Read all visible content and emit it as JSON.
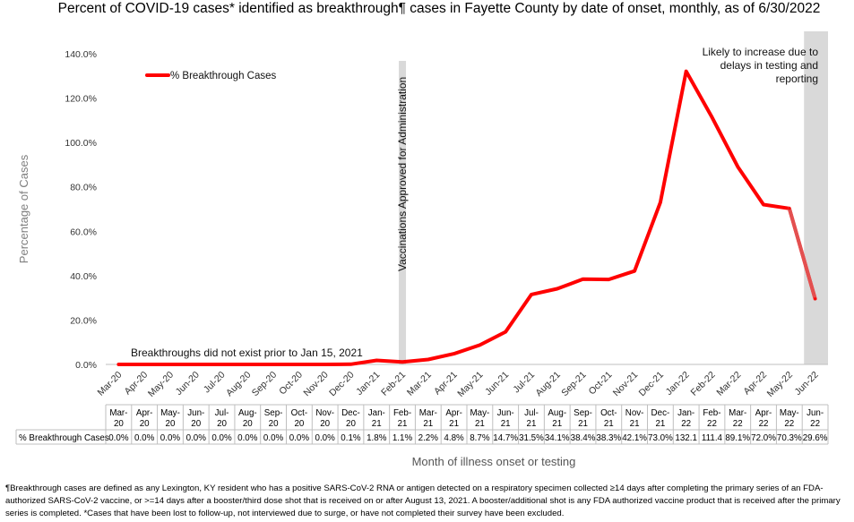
{
  "chart_data": {
    "type": "line",
    "title": "Percent of COVID-19 cases* identified as breakthrough¶ cases in Fayette County by date of onset, monthly, as of 6/30/2022",
    "xlabel": "Month of illness onset or testing",
    "ylabel": "Percentage of Cases",
    "ylim": [
      0,
      140
    ],
    "yticks": [
      "0.0%",
      "20.0%",
      "40.0%",
      "60.0%",
      "80.0%",
      "100.0%",
      "120.0%",
      "140.0%"
    ],
    "grid": false,
    "legend_position": "top-left",
    "categories": [
      "Mar-20",
      "Apr-20",
      "May-20",
      "Jun-20",
      "Jul-20",
      "Aug-20",
      "Sep-20",
      "Oct-20",
      "Nov-20",
      "Dec-20",
      "Jan-21",
      "Feb-21",
      "Mar-21",
      "Apr-21",
      "May-21",
      "Jun-21",
      "Jul-21",
      "Aug-21",
      "Sep-21",
      "Oct-21",
      "Nov-21",
      "Dec-21",
      "Jan-22",
      "Feb-22",
      "Mar-22",
      "Apr-22",
      "May-22",
      "Jun-22"
    ],
    "series": [
      {
        "name": "% Breakthrough Cases",
        "color": "#ff0000",
        "values": [
          0.0,
          0.0,
          0.0,
          0.0,
          0.0,
          0.0,
          0.0,
          0.0,
          0.0,
          0.1,
          1.8,
          1.1,
          2.2,
          4.8,
          8.7,
          14.7,
          31.5,
          34.1,
          38.4,
          38.3,
          42.1,
          73.0,
          132.1,
          111.4,
          89.1,
          72.0,
          70.3,
          29.6
        ],
        "table_labels": [
          "0.0%",
          "0.0%",
          "0.0%",
          "0.0%",
          "0.0%",
          "0.0%",
          "0.0%",
          "0.0%",
          "0.0%",
          "0.1%",
          "1.8%",
          "1.1%",
          "2.2%",
          "4.8%",
          "8.7%",
          "14.7%",
          "31.5%",
          "34.1%",
          "38.4%",
          "38.3%",
          "42.1%",
          "73.0%",
          "132.1",
          "111.4",
          "89.1%",
          "72.0%",
          "70.3%",
          "29.6%"
        ]
      }
    ],
    "annotations": {
      "vaccination_line": "Vaccinations Approved for Administration",
      "vaccination_category": "Feb-21",
      "pre_breakthrough": "Breakthroughs did not exist prior to Jan 15, 2021",
      "likely_increase": "Likely to increase due to delays in testing and reporting",
      "likely_increase_lines": [
        "Likely to increase due to",
        "delays in testing and",
        "reporting"
      ],
      "shaded_category": "Jun-22"
    },
    "table": {
      "row_label": "% Breakthrough Cases",
      "header_split": [
        [
          "Mar-",
          "20"
        ],
        [
          "Apr-",
          "20"
        ],
        [
          "May-",
          "20"
        ],
        [
          "Jun-",
          "20"
        ],
        [
          "Jul-",
          "20"
        ],
        [
          "Aug-",
          "20"
        ],
        [
          "Sep-",
          "20"
        ],
        [
          "Oct-",
          "20"
        ],
        [
          "Nov-",
          "20"
        ],
        [
          "Dec-",
          "20"
        ],
        [
          "Jan-",
          "21"
        ],
        [
          "Feb-",
          "21"
        ],
        [
          "Mar-",
          "21"
        ],
        [
          "Apr-",
          "21"
        ],
        [
          "May-",
          "21"
        ],
        [
          "Jun-",
          "21"
        ],
        [
          "Jul-",
          "21"
        ],
        [
          "Aug-",
          "21"
        ],
        [
          "Sep-",
          "21"
        ],
        [
          "Oct-",
          "21"
        ],
        [
          "Nov-",
          "21"
        ],
        [
          "Dec-",
          "21"
        ],
        [
          "Jan-",
          "22"
        ],
        [
          "Feb-",
          "22"
        ],
        [
          "Mar-",
          "22"
        ],
        [
          "Apr-",
          "22"
        ],
        [
          "May-",
          "22"
        ],
        [
          "Jun-",
          "22"
        ]
      ]
    }
  },
  "footnote": "¶Breakthrough cases are defined as any Lexington, KY resident who has a positive SARS-CoV-2 RNA or antigen detected on a respiratory specimen collected ≥14 days after completing the primary series of an FDA-authorized SARS-CoV-2 vaccine, or >=14 days after a booster/third dose shot that is received on or after August 13, 2021.  A booster/additional shot is any FDA authorized vaccine product that is received after the primary series is completed.  *Cases that have been lost to follow-up, not interviewed due to surge, or have not completed their survey have been excluded."
}
